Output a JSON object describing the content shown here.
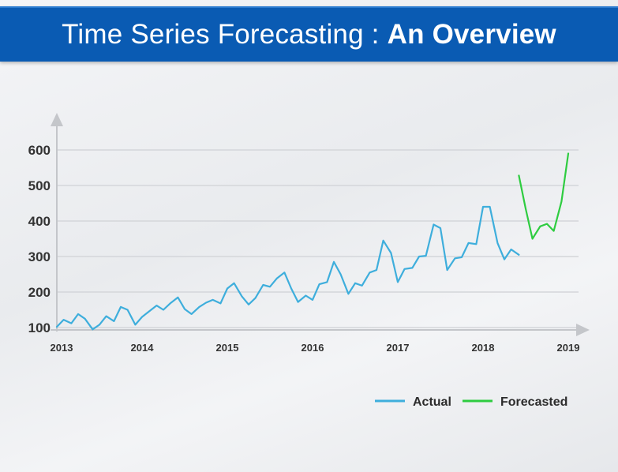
{
  "header": {
    "title_light": "Time Series Forecasting :",
    "title_bold": "An Overview",
    "background_color": "#0a5bb3"
  },
  "chart_data": {
    "type": "line",
    "title": "Time Series Forecasting : An Overview",
    "xlabel": "",
    "ylabel": "",
    "xlim": [
      2013,
      2019
    ],
    "ylim": [
      100,
      600
    ],
    "x_ticks": [
      "2013",
      "2014",
      "2015",
      "2016",
      "2017",
      "2018",
      "2019"
    ],
    "y_ticks": [
      100,
      200,
      300,
      400,
      500,
      600
    ],
    "grid": true,
    "legend_position": "bottom-right",
    "series": [
      {
        "name": "Actual",
        "color": "#3eaedc",
        "x": [
          2013.0,
          2013.08,
          2013.17,
          2013.25,
          2013.33,
          2013.42,
          2013.5,
          2013.58,
          2013.67,
          2013.75,
          2013.83,
          2013.92,
          2014.0,
          2014.08,
          2014.17,
          2014.25,
          2014.33,
          2014.42,
          2014.5,
          2014.58,
          2014.67,
          2014.75,
          2014.83,
          2014.92,
          2015.0,
          2015.08,
          2015.17,
          2015.25,
          2015.33,
          2015.42,
          2015.5,
          2015.58,
          2015.67,
          2015.75,
          2015.83,
          2015.92,
          2016.0,
          2016.08,
          2016.17,
          2016.25,
          2016.33,
          2016.42,
          2016.5,
          2016.58,
          2016.67,
          2016.75,
          2016.83,
          2016.92,
          2017.0,
          2017.08,
          2017.17,
          2017.25,
          2017.33,
          2017.42,
          2017.5,
          2017.58,
          2017.67,
          2017.75,
          2017.83,
          2017.92,
          2018.0,
          2018.08,
          2018.17,
          2018.25,
          2018.33,
          2018.42
        ],
        "y": [
          102,
          122,
          112,
          138,
          125,
          95,
          108,
          132,
          118,
          158,
          150,
          108,
          130,
          145,
          162,
          150,
          168,
          185,
          152,
          138,
          158,
          170,
          178,
          168,
          210,
          225,
          188,
          165,
          183,
          220,
          215,
          238,
          255,
          210,
          172,
          190,
          178,
          222,
          228,
          285,
          250,
          195,
          225,
          218,
          255,
          262,
          345,
          310,
          228,
          265,
          268,
          300,
          302,
          390,
          380,
          262,
          295,
          298,
          338,
          335,
          440,
          440,
          338,
          292,
          320,
          305
        ],
        "values_note": ""
      },
      {
        "name": "Forecasted",
        "color": "#2ecc40",
        "x": [
          2018.42,
          2018.5,
          2018.58,
          2018.67,
          2018.75,
          2018.83,
          2018.92,
          2019.0
        ],
        "y": [
          528,
          435,
          350,
          385,
          392,
          372,
          455,
          590
        ],
        "values_note": ""
      }
    ]
  }
}
